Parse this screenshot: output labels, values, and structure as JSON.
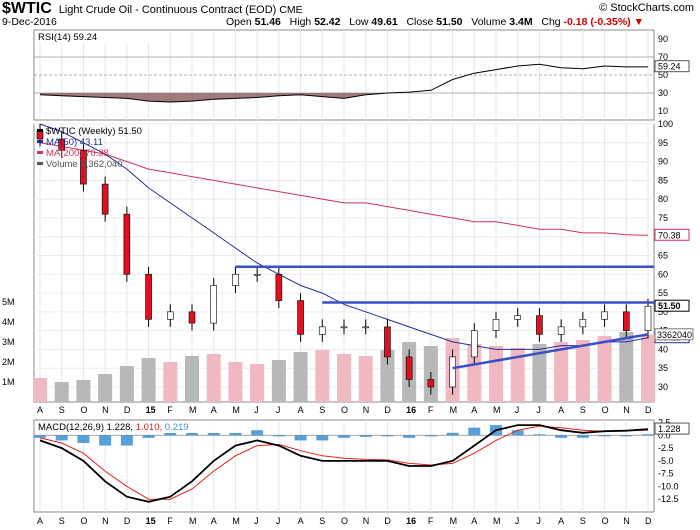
{
  "header": {
    "symbol": "$WTIC",
    "description": "Light Crude Oil - Continuous Contract (EOD)",
    "exchange": "CME",
    "date": "9-Dec-2016",
    "open_label": "Open",
    "open": "51.46",
    "high_label": "High",
    "high": "52.42",
    "low_label": "Low",
    "low": "49.61",
    "close_label": "Close",
    "close": "51.50",
    "volume_label": "Volume",
    "volume": "3.4M",
    "change_label": "Chg",
    "change": "-0.18 (-0.35%)",
    "copyright": "© StockCharts.com"
  },
  "colors": {
    "price_line": "#000000",
    "ma50": "#1f2f9a",
    "ma200": "#cc3355",
    "up_bar": "#f0b8c0",
    "down_bar": "#b8b8b8",
    "trendline": "#3a4fc8",
    "macd_line": "#000000",
    "signal_line": "#e0241b",
    "histogram": "#3b8fd0",
    "rsi_fill": "#8a5a5a"
  },
  "chart_data": [
    {
      "type": "line",
      "name": "RSI panel",
      "title": "RSI(14) 59.24",
      "value_label": "59.24",
      "ylim": [
        0,
        100
      ],
      "y_ticks": [
        "90",
        "70",
        "50",
        "30",
        "10"
      ],
      "reference_lines": [
        70,
        50,
        30
      ],
      "x": [
        "A",
        "S",
        "O",
        "N",
        "D",
        "15",
        "F",
        "M",
        "A",
        "M",
        "J",
        "J",
        "A",
        "S",
        "O",
        "N",
        "D",
        "16",
        "F",
        "M",
        "A",
        "M",
        "J",
        "J",
        "A",
        "S",
        "O",
        "N",
        "D"
      ],
      "series": [
        {
          "name": "RSI(14)",
          "values": [
            28,
            27,
            26,
            25,
            24,
            21,
            20,
            21,
            23,
            24,
            25,
            27,
            28,
            26,
            24,
            28,
            30,
            31,
            33,
            45,
            52,
            56,
            60,
            62,
            58,
            57,
            60,
            59,
            59
          ]
        }
      ]
    },
    {
      "type": "candlestick",
      "name": "Price panel",
      "title": "$WTIC (Weekly) 51.50",
      "legend": [
        "$WTIC (Weekly) 51.50",
        "MA(50) 43.11",
        "MA(200) 70.38",
        "Volume 3,362,040"
      ],
      "ylim": [
        26,
        100
      ],
      "y_ticks": [
        "100",
        "95",
        "90",
        "85",
        "80",
        "75",
        "70",
        "65",
        "60",
        "55",
        "50",
        "45",
        "40",
        "35",
        "30"
      ],
      "last_price_label": "51.50",
      "ma200_label": "70.38",
      "ma50_label": "43.11",
      "volume_label": "3362040",
      "volume_axis": [
        "5M",
        "4M",
        "3M",
        "2M",
        "1M"
      ],
      "x": [
        "A",
        "S",
        "O",
        "N",
        "D",
        "15",
        "F",
        "M",
        "A",
        "M",
        "J",
        "J",
        "A",
        "S",
        "O",
        "N",
        "D",
        "16",
        "F",
        "M",
        "A",
        "M",
        "J",
        "J",
        "A",
        "S",
        "O",
        "N",
        "D"
      ],
      "close": [
        96,
        93,
        84,
        76,
        60,
        48,
        50,
        47,
        57,
        60,
        60,
        53,
        44,
        46,
        46,
        46,
        38,
        32,
        30,
        38,
        45,
        48,
        49,
        44,
        46,
        48,
        50,
        45,
        51.5
      ],
      "ma50": [
        100,
        98,
        95,
        92,
        88,
        83,
        79,
        75,
        71,
        67,
        63,
        60,
        57,
        55,
        52,
        50,
        48,
        46,
        44,
        42,
        41,
        40,
        40,
        40,
        41,
        41,
        42,
        42,
        43.11
      ],
      "ma200": [
        95,
        94,
        93,
        92,
        90,
        88,
        87,
        86,
        85,
        84,
        83,
        82,
        81,
        80,
        79,
        79,
        78,
        77,
        76,
        75,
        74,
        74,
        73,
        72,
        72,
        71,
        71,
        70.5,
        70.38
      ],
      "volume_m": [
        1.2,
        1.0,
        1.1,
        1.4,
        1.8,
        2.2,
        2.0,
        2.3,
        2.4,
        2.0,
        1.9,
        2.1,
        2.5,
        2.6,
        2.4,
        2.3,
        2.6,
        3.0,
        2.8,
        3.2,
        2.9,
        2.8,
        2.7,
        2.9,
        3.0,
        3.1,
        3.3,
        3.5,
        3.36
      ],
      "horizontal_lines": [
        62,
        52.5
      ],
      "trendline": {
        "start": [
          "M",
          35
        ],
        "end": [
          "D",
          44
        ]
      }
    },
    {
      "type": "line",
      "name": "MACD panel",
      "title": "MACD(12,26,9)",
      "macd_value": "1.228",
      "signal_value": "1.010",
      "hist_value": "0.219",
      "ylim": [
        -15,
        3
      ],
      "y_ticks": [
        "2.5",
        "0.0",
        "-2.5",
        "-5.0",
        "-7.5",
        "-10.0",
        "-12.5"
      ],
      "x": [
        "A",
        "S",
        "O",
        "N",
        "D",
        "15",
        "F",
        "M",
        "A",
        "M",
        "J",
        "J",
        "A",
        "S",
        "O",
        "N",
        "D",
        "16",
        "F",
        "M",
        "A",
        "M",
        "J",
        "J",
        "A",
        "S",
        "O",
        "N",
        "D"
      ],
      "series": [
        {
          "name": "MACD",
          "values": [
            -1,
            -2.5,
            -5,
            -9,
            -12,
            -13,
            -12,
            -9,
            -5,
            -2,
            -1,
            -2,
            -4,
            -5,
            -5,
            -5,
            -5,
            -6,
            -6,
            -5,
            -2,
            1,
            2,
            2,
            1,
            0.5,
            0.8,
            0.9,
            1.228
          ]
        },
        {
          "name": "Signal",
          "values": [
            -0.5,
            -1.5,
            -3.5,
            -7,
            -10,
            -12.5,
            -12.5,
            -10.5,
            -7,
            -4,
            -2,
            -1.8,
            -3,
            -4,
            -4.5,
            -4.7,
            -4.8,
            -5.5,
            -5.8,
            -5.5,
            -3.5,
            -1,
            1,
            1.8,
            1.5,
            1,
            0.8,
            0.9,
            1.01
          ]
        },
        {
          "name": "Histogram",
          "values": [
            -0.5,
            -1,
            -1.5,
            -2,
            -2,
            -0.5,
            0.5,
            1.5,
            2,
            2,
            1,
            -0.2,
            -1,
            -1,
            -0.5,
            -0.3,
            -0.2,
            -0.5,
            -0.2,
            0.5,
            1.5,
            2,
            1,
            0.2,
            -0.5,
            -0.5,
            0,
            0,
            0.219
          ]
        }
      ]
    }
  ],
  "x_axis_labels": [
    "A",
    "S",
    "O",
    "N",
    "D",
    "15",
    "F",
    "M",
    "A",
    "M",
    "J",
    "J",
    "A",
    "S",
    "O",
    "N",
    "D",
    "16",
    "F",
    "M",
    "A",
    "M",
    "J",
    "J",
    "A",
    "S",
    "O",
    "N",
    "D"
  ]
}
